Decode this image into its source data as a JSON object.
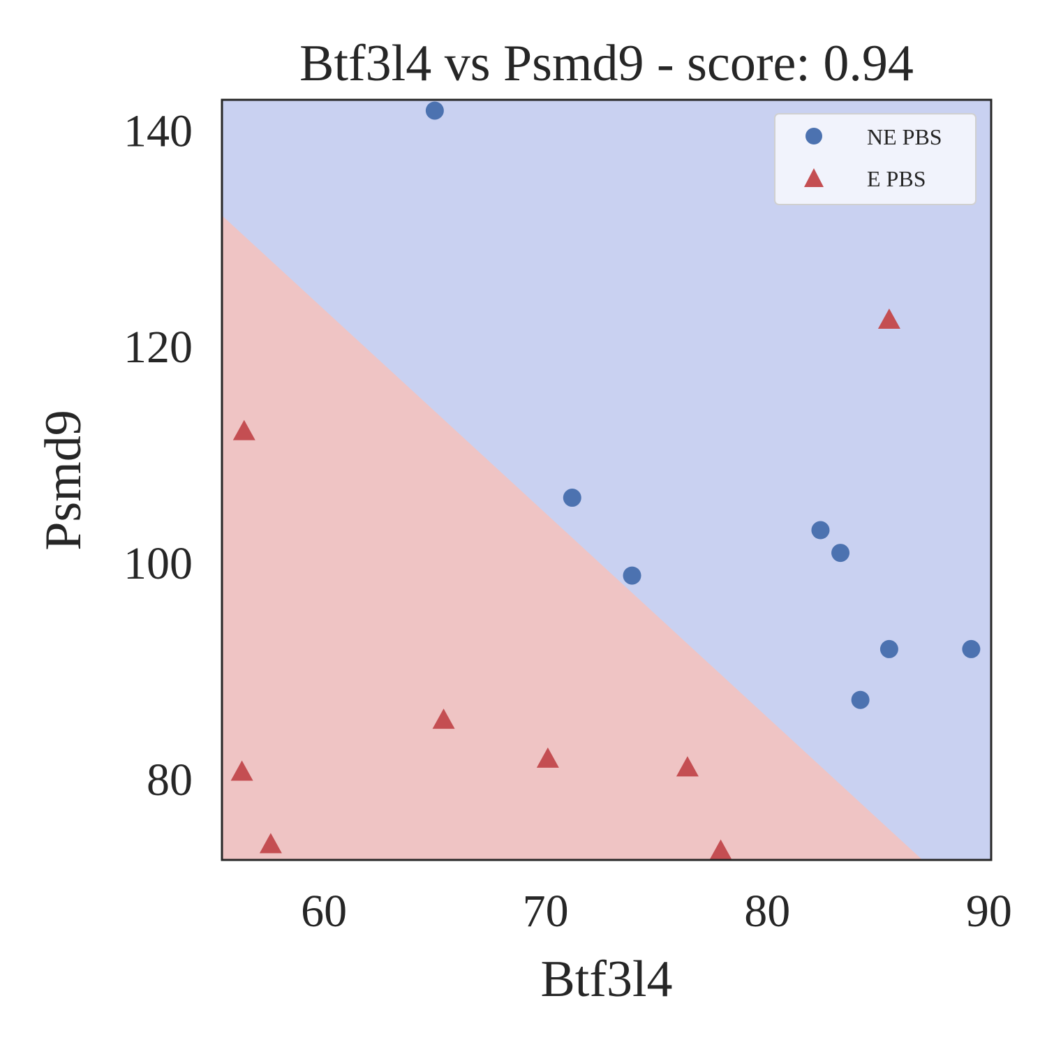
{
  "chart_data": {
    "type": "scatter",
    "title": "Btf3l4 vs Psmd9 - score: 0.94",
    "xlabel": "Btf3l4",
    "ylabel": "Psmd9",
    "xlim": [
      55.4,
      90.1
    ],
    "ylim": [
      72.5,
      142.8
    ],
    "xticks": [
      60,
      70,
      80,
      90
    ],
    "yticks": [
      80,
      100,
      120,
      140
    ],
    "grid": false,
    "legend_position": "top-right",
    "decision_boundary": {
      "line": [
        [
          55.4,
          132.1
        ],
        [
          87.0,
          72.5
        ]
      ],
      "upper_region_class": "NE PBS",
      "lower_region_class": "E PBS"
    },
    "colors": {
      "ne_marker": "#4c72b0",
      "e_marker": "#c44e52",
      "ne_region": "#c9d1f1",
      "e_region": "#efc4c4",
      "axes_edge": "#262626"
    },
    "series": [
      {
        "name": "NE PBS",
        "marker": "circle",
        "points": [
          [
            65.0,
            141.8
          ],
          [
            71.2,
            106.0
          ],
          [
            73.9,
            98.8
          ],
          [
            82.4,
            103.0
          ],
          [
            83.3,
            100.9
          ],
          [
            85.5,
            92.0
          ],
          [
            89.2,
            92.0
          ],
          [
            84.2,
            87.3
          ]
        ]
      },
      {
        "name": "E PBS",
        "marker": "triangle",
        "points": [
          [
            56.4,
            112.1
          ],
          [
            56.3,
            80.6
          ],
          [
            57.6,
            73.9
          ],
          [
            65.4,
            85.4
          ],
          [
            70.1,
            81.8
          ],
          [
            76.4,
            81.0
          ],
          [
            77.9,
            73.3
          ],
          [
            85.5,
            122.4
          ]
        ]
      }
    ]
  }
}
